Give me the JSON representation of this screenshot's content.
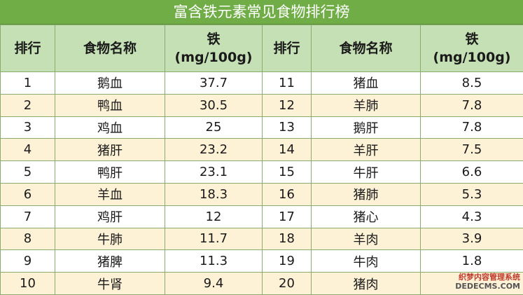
{
  "title": "富含铁元素常见食物排行榜",
  "headers": {
    "rank": "排行",
    "food": "食物名称",
    "iron_line1": "铁",
    "iron_line2": "(mg/100g)"
  },
  "rows": [
    {
      "left": {
        "rank": "1",
        "food": "鹅血",
        "iron": "37.7"
      },
      "right": {
        "rank": "11",
        "food": "猪血",
        "iron": "8.5"
      }
    },
    {
      "left": {
        "rank": "2",
        "food": "鸭血",
        "iron": "30.5"
      },
      "right": {
        "rank": "12",
        "food": "羊肺",
        "iron": "7.8"
      }
    },
    {
      "left": {
        "rank": "3",
        "food": "鸡血",
        "iron": "25"
      },
      "right": {
        "rank": "13",
        "food": "鹅肝",
        "iron": "7.8"
      }
    },
    {
      "left": {
        "rank": "4",
        "food": "猪肝",
        "iron": "23.2"
      },
      "right": {
        "rank": "14",
        "food": "羊肝",
        "iron": "7.5"
      }
    },
    {
      "left": {
        "rank": "5",
        "food": "鸭肝",
        "iron": "23.1"
      },
      "right": {
        "rank": "15",
        "food": "牛肝",
        "iron": "6.6"
      }
    },
    {
      "left": {
        "rank": "6",
        "food": "羊血",
        "iron": "18.3"
      },
      "right": {
        "rank": "16",
        "food": "猪肺",
        "iron": "5.3"
      }
    },
    {
      "left": {
        "rank": "7",
        "food": "鸡肝",
        "iron": "12"
      },
      "right": {
        "rank": "17",
        "food": "猪心",
        "iron": "4.3"
      }
    },
    {
      "left": {
        "rank": "8",
        "food": "牛肺",
        "iron": "11.7"
      },
      "right": {
        "rank": "18",
        "food": "羊肉",
        "iron": "3.9"
      }
    },
    {
      "left": {
        "rank": "9",
        "food": "猪脾",
        "iron": "11.3"
      },
      "right": {
        "rank": "19",
        "food": "牛肉",
        "iron": "1.8"
      }
    },
    {
      "left": {
        "rank": "10",
        "food": "牛肾",
        "iron": "9.4"
      },
      "right": {
        "rank": "20",
        "food": "猪肉",
        "iron": ""
      }
    }
  ],
  "watermark": {
    "line1": "织梦内容管理系统",
    "line2": "DEDECMS.COM"
  }
}
